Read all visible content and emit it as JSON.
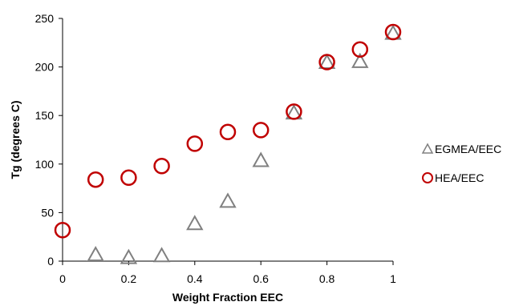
{
  "chart_data": {
    "type": "scatter",
    "title": "",
    "xlabel": "Weight Fraction EEC",
    "ylabel": "Tg (degrees C)",
    "xlim": [
      0,
      1
    ],
    "ylim": [
      0,
      250
    ],
    "x_ticks": [
      "0",
      "0.2",
      "0.4",
      "0.6",
      "0.8",
      "1"
    ],
    "y_ticks": [
      "0",
      "50",
      "100",
      "150",
      "200",
      "250"
    ],
    "grid": false,
    "legend_position": "right",
    "series": [
      {
        "name": "EGMEA/EEC",
        "marker": "triangle",
        "color": "#808080",
        "x": [
          0.1,
          0.2,
          0.3,
          0.4,
          0.5,
          0.6,
          0.7,
          0.8,
          0.9,
          1.0
        ],
        "y": [
          7,
          4,
          6,
          39,
          62,
          104,
          153,
          205,
          206,
          235
        ]
      },
      {
        "name": "HEA/EEC",
        "marker": "circle",
        "color": "#c00000",
        "x": [
          0,
          0.1,
          0.2,
          0.3,
          0.4,
          0.5,
          0.6,
          0.7,
          0.8,
          0.9,
          1.0
        ],
        "y": [
          32,
          84,
          86,
          98,
          121,
          133,
          135,
          154,
          205,
          218,
          236
        ]
      }
    ]
  }
}
